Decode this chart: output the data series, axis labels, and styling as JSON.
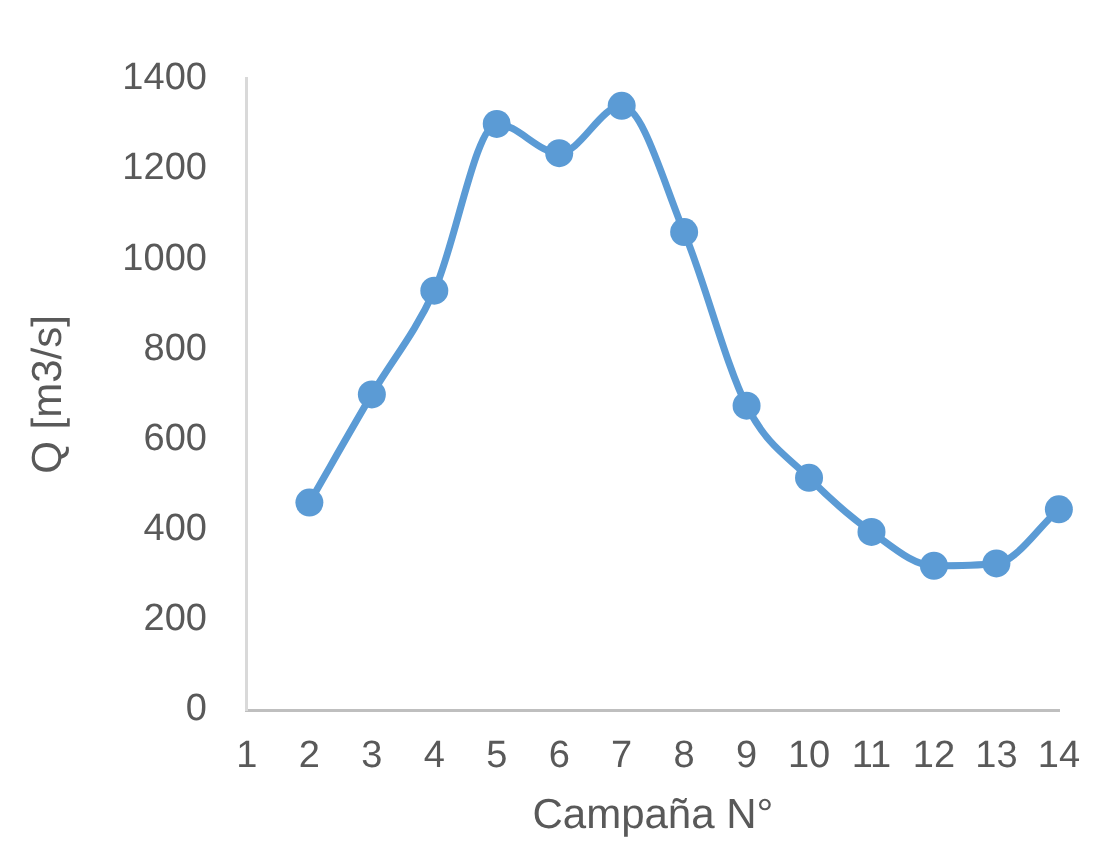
{
  "chart_data": {
    "type": "line",
    "xlabel": "Campaña N°",
    "ylabel": "Q [m3/s]",
    "x": [
      2,
      3,
      4,
      5,
      6,
      7,
      8,
      9,
      10,
      11,
      12,
      13,
      14
    ],
    "series": [
      {
        "color": "#5b9bd5",
        "values": [
          460,
          700,
          930,
          1300,
          1235,
          1340,
          1060,
          675,
          515,
          395,
          320,
          325,
          445
        ]
      }
    ],
    "xlim": [
      1,
      14
    ],
    "xticks": [
      1,
      2,
      3,
      4,
      5,
      6,
      7,
      8,
      9,
      10,
      11,
      12,
      13,
      14
    ],
    "ylim": [
      0,
      1400
    ],
    "yticks": [
      0,
      200,
      400,
      600,
      800,
      1000,
      1200,
      1400
    ],
    "grid": false,
    "legend": false,
    "marker": "circle",
    "line_style": "solid"
  }
}
